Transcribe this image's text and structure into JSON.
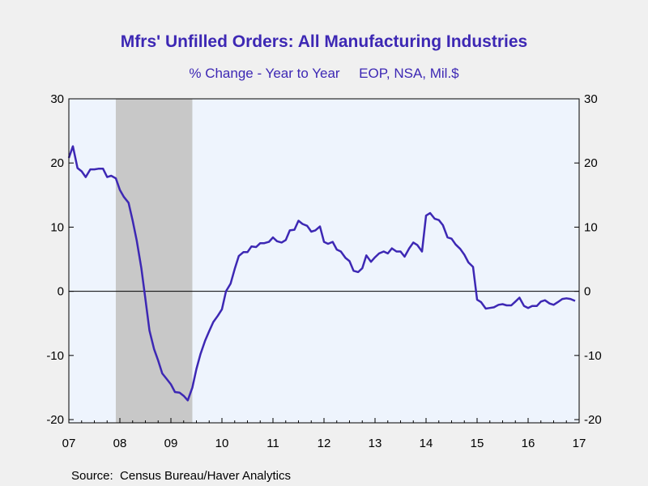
{
  "chart_data": {
    "type": "line",
    "title": "Mfrs' Unfilled Orders: All Manufacturing Industries",
    "subtitle": "% Change - Year to Year     EOP, NSA, Mil.$",
    "source": "Source:  Census Bureau/Haver Analytics",
    "x_tick_labels": [
      "07",
      "08",
      "09",
      "10",
      "11",
      "12",
      "13",
      "14",
      "15",
      "16",
      "17"
    ],
    "x_tick_years": [
      2007,
      2008,
      2009,
      2010,
      2011,
      2012,
      2013,
      2014,
      2015,
      2016,
      2017
    ],
    "y_ticks": [
      30,
      20,
      10,
      0,
      -10,
      -20
    ],
    "y_tick_labels": [
      "30",
      "20",
      "10",
      "0",
      "-10",
      "-20"
    ],
    "ylim": [
      -20.5,
      30
    ],
    "xlim": [
      2007.0,
      2017.0
    ],
    "grid": false,
    "zero_line": true,
    "recession_shading": [
      {
        "start": 2007.92,
        "end": 2009.42
      }
    ],
    "colors": {
      "line": "#3d28b4",
      "title": "#3d28b4",
      "plot_bg": "#eef4fd",
      "recession": "#c8c8c8",
      "page_bg": "#f0f0f0"
    },
    "series": [
      {
        "x": [
          2007.0,
          2007.08,
          2007.17,
          2007.25,
          2007.33,
          2007.42,
          2007.5,
          2007.58,
          2007.67,
          2007.75,
          2007.83,
          2007.92,
          2008.0,
          2008.08,
          2008.17,
          2008.25,
          2008.33,
          2008.42,
          2008.5,
          2008.58,
          2008.67,
          2008.75,
          2008.83,
          2008.92,
          2009.0,
          2009.08,
          2009.17,
          2009.25,
          2009.33,
          2009.42,
          2009.5,
          2009.58,
          2009.67,
          2009.75,
          2009.83,
          2009.92,
          2010.0,
          2010.08,
          2010.17,
          2010.25,
          2010.33,
          2010.42,
          2010.5,
          2010.58,
          2010.67,
          2010.75,
          2010.83,
          2010.92,
          2011.0,
          2011.08,
          2011.17,
          2011.25,
          2011.33,
          2011.42,
          2011.5,
          2011.58,
          2011.67,
          2011.75,
          2011.83,
          2011.92,
          2012.0,
          2012.08,
          2012.17,
          2012.25,
          2012.33,
          2012.42,
          2012.5,
          2012.58,
          2012.67,
          2012.75,
          2012.83,
          2012.92,
          2013.0,
          2013.08,
          2013.17,
          2013.25,
          2013.33,
          2013.42,
          2013.5,
          2013.58,
          2013.67,
          2013.75,
          2013.83,
          2013.92,
          2014.0,
          2014.08,
          2014.17,
          2014.25,
          2014.33,
          2014.42,
          2014.5,
          2014.58,
          2014.67,
          2014.75,
          2014.83,
          2014.92,
          2015.0,
          2015.08,
          2015.17,
          2015.25,
          2015.33,
          2015.42,
          2015.5,
          2015.58,
          2015.67,
          2015.75,
          2015.83,
          2015.92,
          2016.0,
          2016.08,
          2016.17,
          2016.25,
          2016.33,
          2016.42,
          2016.5,
          2016.58,
          2016.67,
          2016.75,
          2016.83,
          2016.92
        ],
        "y": [
          20.8,
          22.6,
          19.2,
          18.7,
          17.8,
          19.0,
          19.0,
          19.1,
          19.1,
          17.8,
          18.0,
          17.6,
          15.8,
          14.7,
          13.8,
          11.0,
          7.9,
          3.6,
          -1.2,
          -6.1,
          -9.0,
          -10.8,
          -12.8,
          -13.7,
          -14.5,
          -15.7,
          -15.8,
          -16.3,
          -17.0,
          -15.0,
          -12.1,
          -9.8,
          -7.7,
          -6.2,
          -4.8,
          -3.8,
          -2.8,
          0.0,
          1.2,
          3.5,
          5.5,
          6.1,
          6.1,
          7.0,
          6.9,
          7.5,
          7.5,
          7.7,
          8.4,
          7.8,
          7.6,
          8.0,
          9.5,
          9.6,
          11.0,
          10.5,
          10.2,
          9.3,
          9.5,
          10.1,
          7.7,
          7.4,
          7.7,
          6.5,
          6.2,
          5.2,
          4.7,
          3.2,
          3.0,
          3.6,
          5.6,
          4.6,
          5.3,
          5.9,
          6.2,
          5.9,
          6.7,
          6.2,
          6.2,
          5.4,
          6.7,
          7.6,
          7.2,
          6.2,
          11.8,
          12.2,
          11.3,
          11.1,
          10.3,
          8.4,
          8.2,
          7.3,
          6.6,
          5.7,
          4.5,
          3.8,
          -1.3,
          -1.7,
          -2.7,
          -2.6,
          -2.5,
          -2.1,
          -2.0,
          -2.2,
          -2.2,
          -1.6,
          -1.0,
          -2.3,
          -2.6,
          -2.3,
          -2.3,
          -1.6,
          -1.4,
          -1.9,
          -2.1,
          -1.7,
          -1.2,
          -1.1,
          -1.2,
          -1.5
        ]
      }
    ]
  }
}
